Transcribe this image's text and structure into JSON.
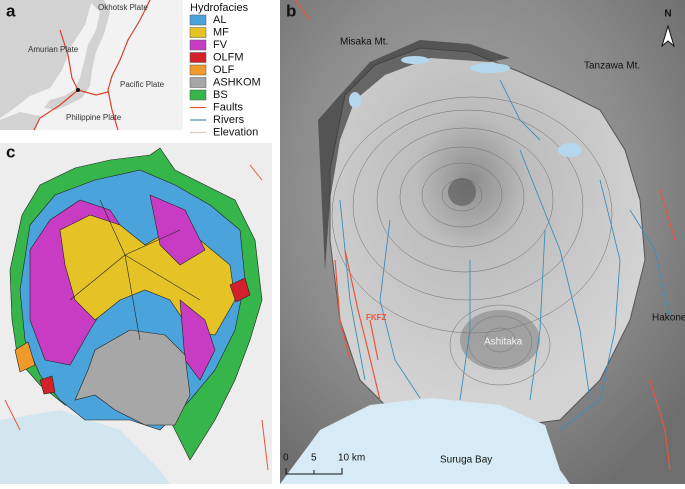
{
  "panels": {
    "a": {
      "label": "a",
      "plates": [
        "Okhotsk Plate",
        "Amurian Plate",
        "Pacific Plate",
        "Philippine Plate"
      ]
    },
    "b": {
      "label": "b",
      "places": [
        "Misaka Mt.",
        "Tanzawa Mt.",
        "Hakone",
        "Ashitaka",
        "FKFZ",
        "Suruga Bay"
      ],
      "north": "N",
      "scale": [
        "0",
        "5",
        "10 km"
      ]
    },
    "c": {
      "label": "c"
    }
  },
  "legend": {
    "title": "Hydrofacies",
    "items": [
      {
        "name": "AL",
        "color": "#4aa3da"
      },
      {
        "name": "MF",
        "color": "#e5c225"
      },
      {
        "name": "FV",
        "color": "#c83cc4"
      },
      {
        "name": "OLFM",
        "color": "#d3202b"
      },
      {
        "name": "OLF",
        "color": "#ef9b2c"
      },
      {
        "name": "ASHKOM",
        "color": "#a7a7a7"
      },
      {
        "name": "BS",
        "color": "#36b54a"
      }
    ],
    "lines": [
      {
        "name": "Faults",
        "color": "#e8553a"
      },
      {
        "name": "Rivers",
        "color": "#3a8fb8"
      },
      {
        "name": "Elevation",
        "color": "#d8cfb8"
      }
    ]
  }
}
